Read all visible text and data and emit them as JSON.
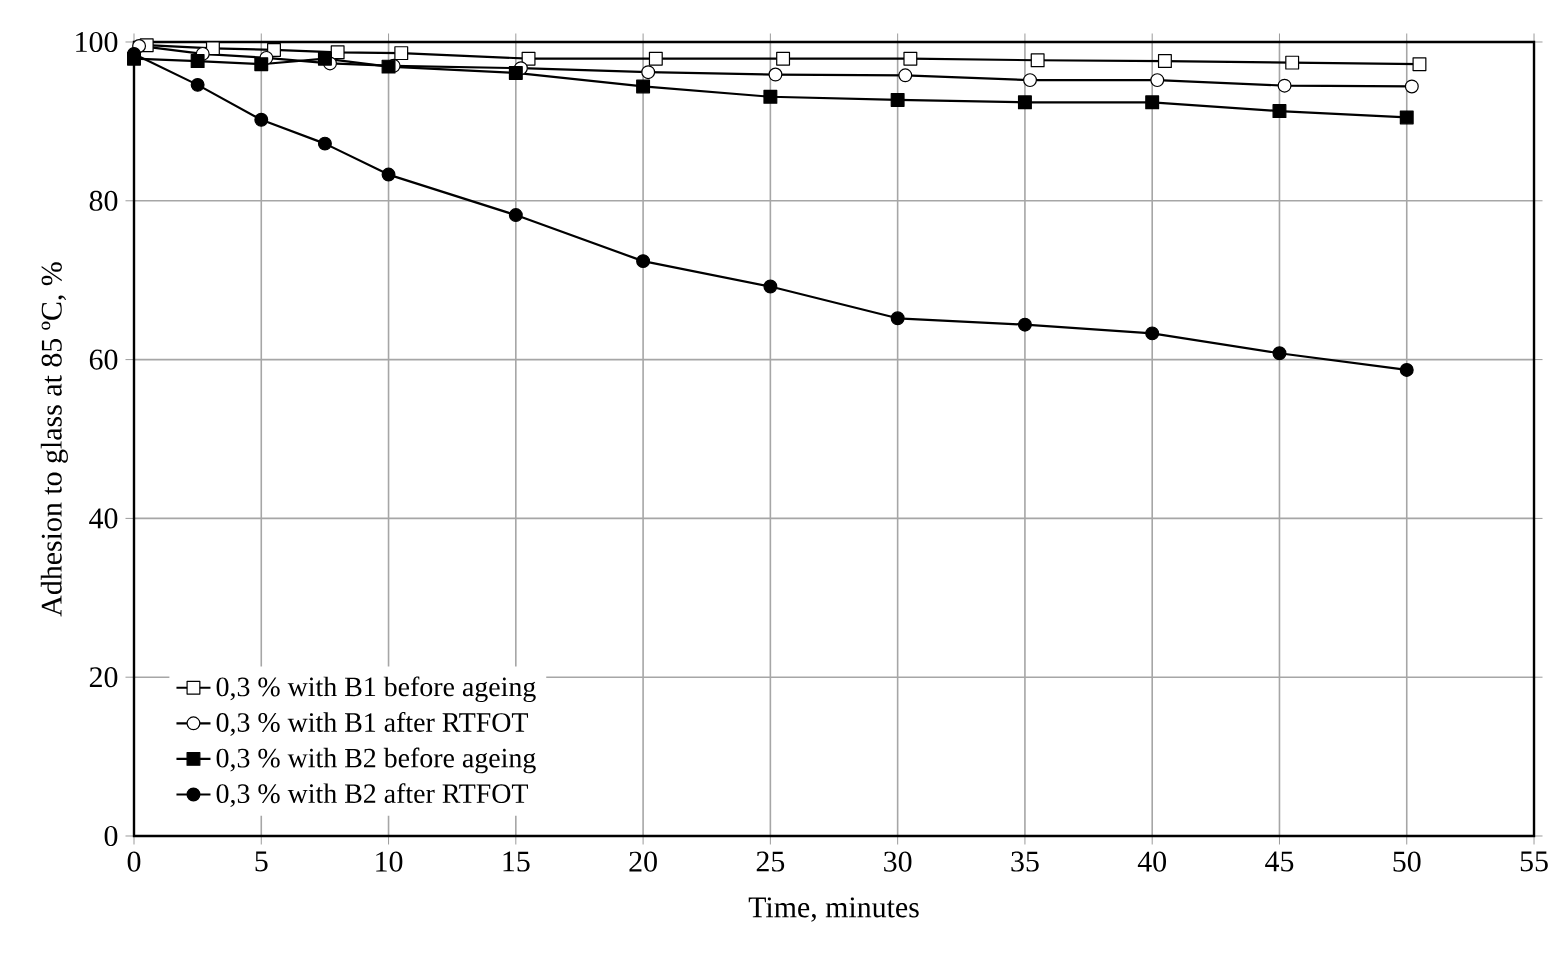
{
  "chart_data": {
    "type": "line",
    "xlabel": "Time, minutes",
    "ylabel": "Adhesion to glass at 85 ºC, %",
    "xlim": [
      0,
      55
    ],
    "ylim": [
      0,
      100
    ],
    "xticks": [
      0,
      5,
      10,
      15,
      20,
      25,
      30,
      35,
      40,
      45,
      50,
      55
    ],
    "yticks": [
      0,
      20,
      40,
      60,
      80,
      100
    ],
    "grid": true,
    "legend": "bottom left",
    "series": [
      {
        "name": "0,3 % with B1 before ageing",
        "color": "#ffffff",
        "marker": "square",
        "x": [
          0.5,
          3.1,
          5.5,
          8,
          10.5,
          15.5,
          20.5,
          25.5,
          30.5,
          35.5,
          40.5,
          45.5,
          50.5
        ],
        "values": [
          99.6,
          99.2,
          99,
          98.7,
          98.6,
          97.9,
          97.9,
          97.9,
          97.9,
          97.7,
          97.6,
          97.4,
          97.2
        ]
      },
      {
        "name": "0,3 % with B1 after RTFOT",
        "color": "#ffffff",
        "marker": "circle",
        "x": [
          0.2,
          2.7,
          5.2,
          7.7,
          10.2,
          15.2,
          20.2,
          25.2,
          30.3,
          35.2,
          40.2,
          45.2,
          50.2
        ],
        "values": [
          99.5,
          98.5,
          98,
          97.3,
          97,
          96.7,
          96.2,
          95.9,
          95.8,
          95.2,
          95.2,
          94.5,
          94.4
        ]
      },
      {
        "name": "0,3 % with B2 before ageing",
        "color": "#000000",
        "marker": "square",
        "x": [
          0,
          2.5,
          5,
          7.5,
          10,
          15,
          20,
          25,
          30,
          35,
          40,
          45,
          50
        ],
        "values": [
          97.9,
          97.6,
          97.2,
          97.9,
          96.9,
          96.1,
          94.4,
          93.1,
          92.7,
          92.4,
          92.4,
          91.3,
          90.5
        ]
      },
      {
        "name": "0,3 % with B2 after RTFOT",
        "color": "#000000",
        "marker": "circle",
        "x": [
          0,
          2.5,
          5,
          7.5,
          10,
          15,
          20,
          25,
          30,
          35,
          40,
          45,
          50
        ],
        "values": [
          98.5,
          94.6,
          90.2,
          87.2,
          83.3,
          78.2,
          72.4,
          69.2,
          65.2,
          64.4,
          63.3,
          60.8,
          58.7
        ]
      }
    ]
  }
}
